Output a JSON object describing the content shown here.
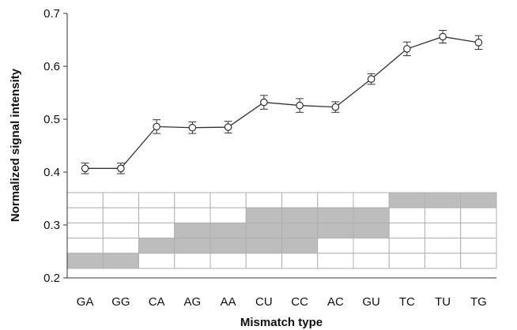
{
  "chart_data": {
    "type": "line",
    "title": "",
    "xlabel": "Mismatch type",
    "ylabel": "Normalized signal intensity",
    "ylim": [
      0.2,
      0.7
    ],
    "yticks": [
      "0.2",
      "0.3",
      "0.4",
      "0.5",
      "0.6",
      "0.7"
    ],
    "categories": [
      "GA",
      "GG",
      "CA",
      "AG",
      "AA",
      "CU",
      "CC",
      "AC",
      "GU",
      "TC",
      "TU",
      "TG"
    ],
    "series": [
      {
        "values": [
          0.407,
          0.407,
          0.486,
          0.484,
          0.485,
          0.532,
          0.526,
          0.523,
          0.576,
          0.633,
          0.656,
          0.645
        ],
        "error": [
          0.01,
          0.01,
          0.013,
          0.011,
          0.011,
          0.013,
          0.013,
          0.01,
          0.01,
          0.013,
          0.012,
          0.013
        ]
      }
    ],
    "grid": false,
    "legend": "none",
    "line_color": "#333333",
    "marker": "open-circle",
    "lower_grid": {
      "rows": 5,
      "shaded_color": "#bdbdbd",
      "shaded_rows_from_top": [
        [
          4
        ],
        [
          4
        ],
        [
          3
        ],
        [
          2,
          3
        ],
        [
          2,
          3
        ],
        [
          1,
          2,
          3
        ],
        [
          1,
          2,
          3
        ],
        [
          1,
          2
        ],
        [
          1,
          2
        ],
        [
          0
        ],
        [
          0
        ],
        [
          0
        ]
      ]
    }
  }
}
